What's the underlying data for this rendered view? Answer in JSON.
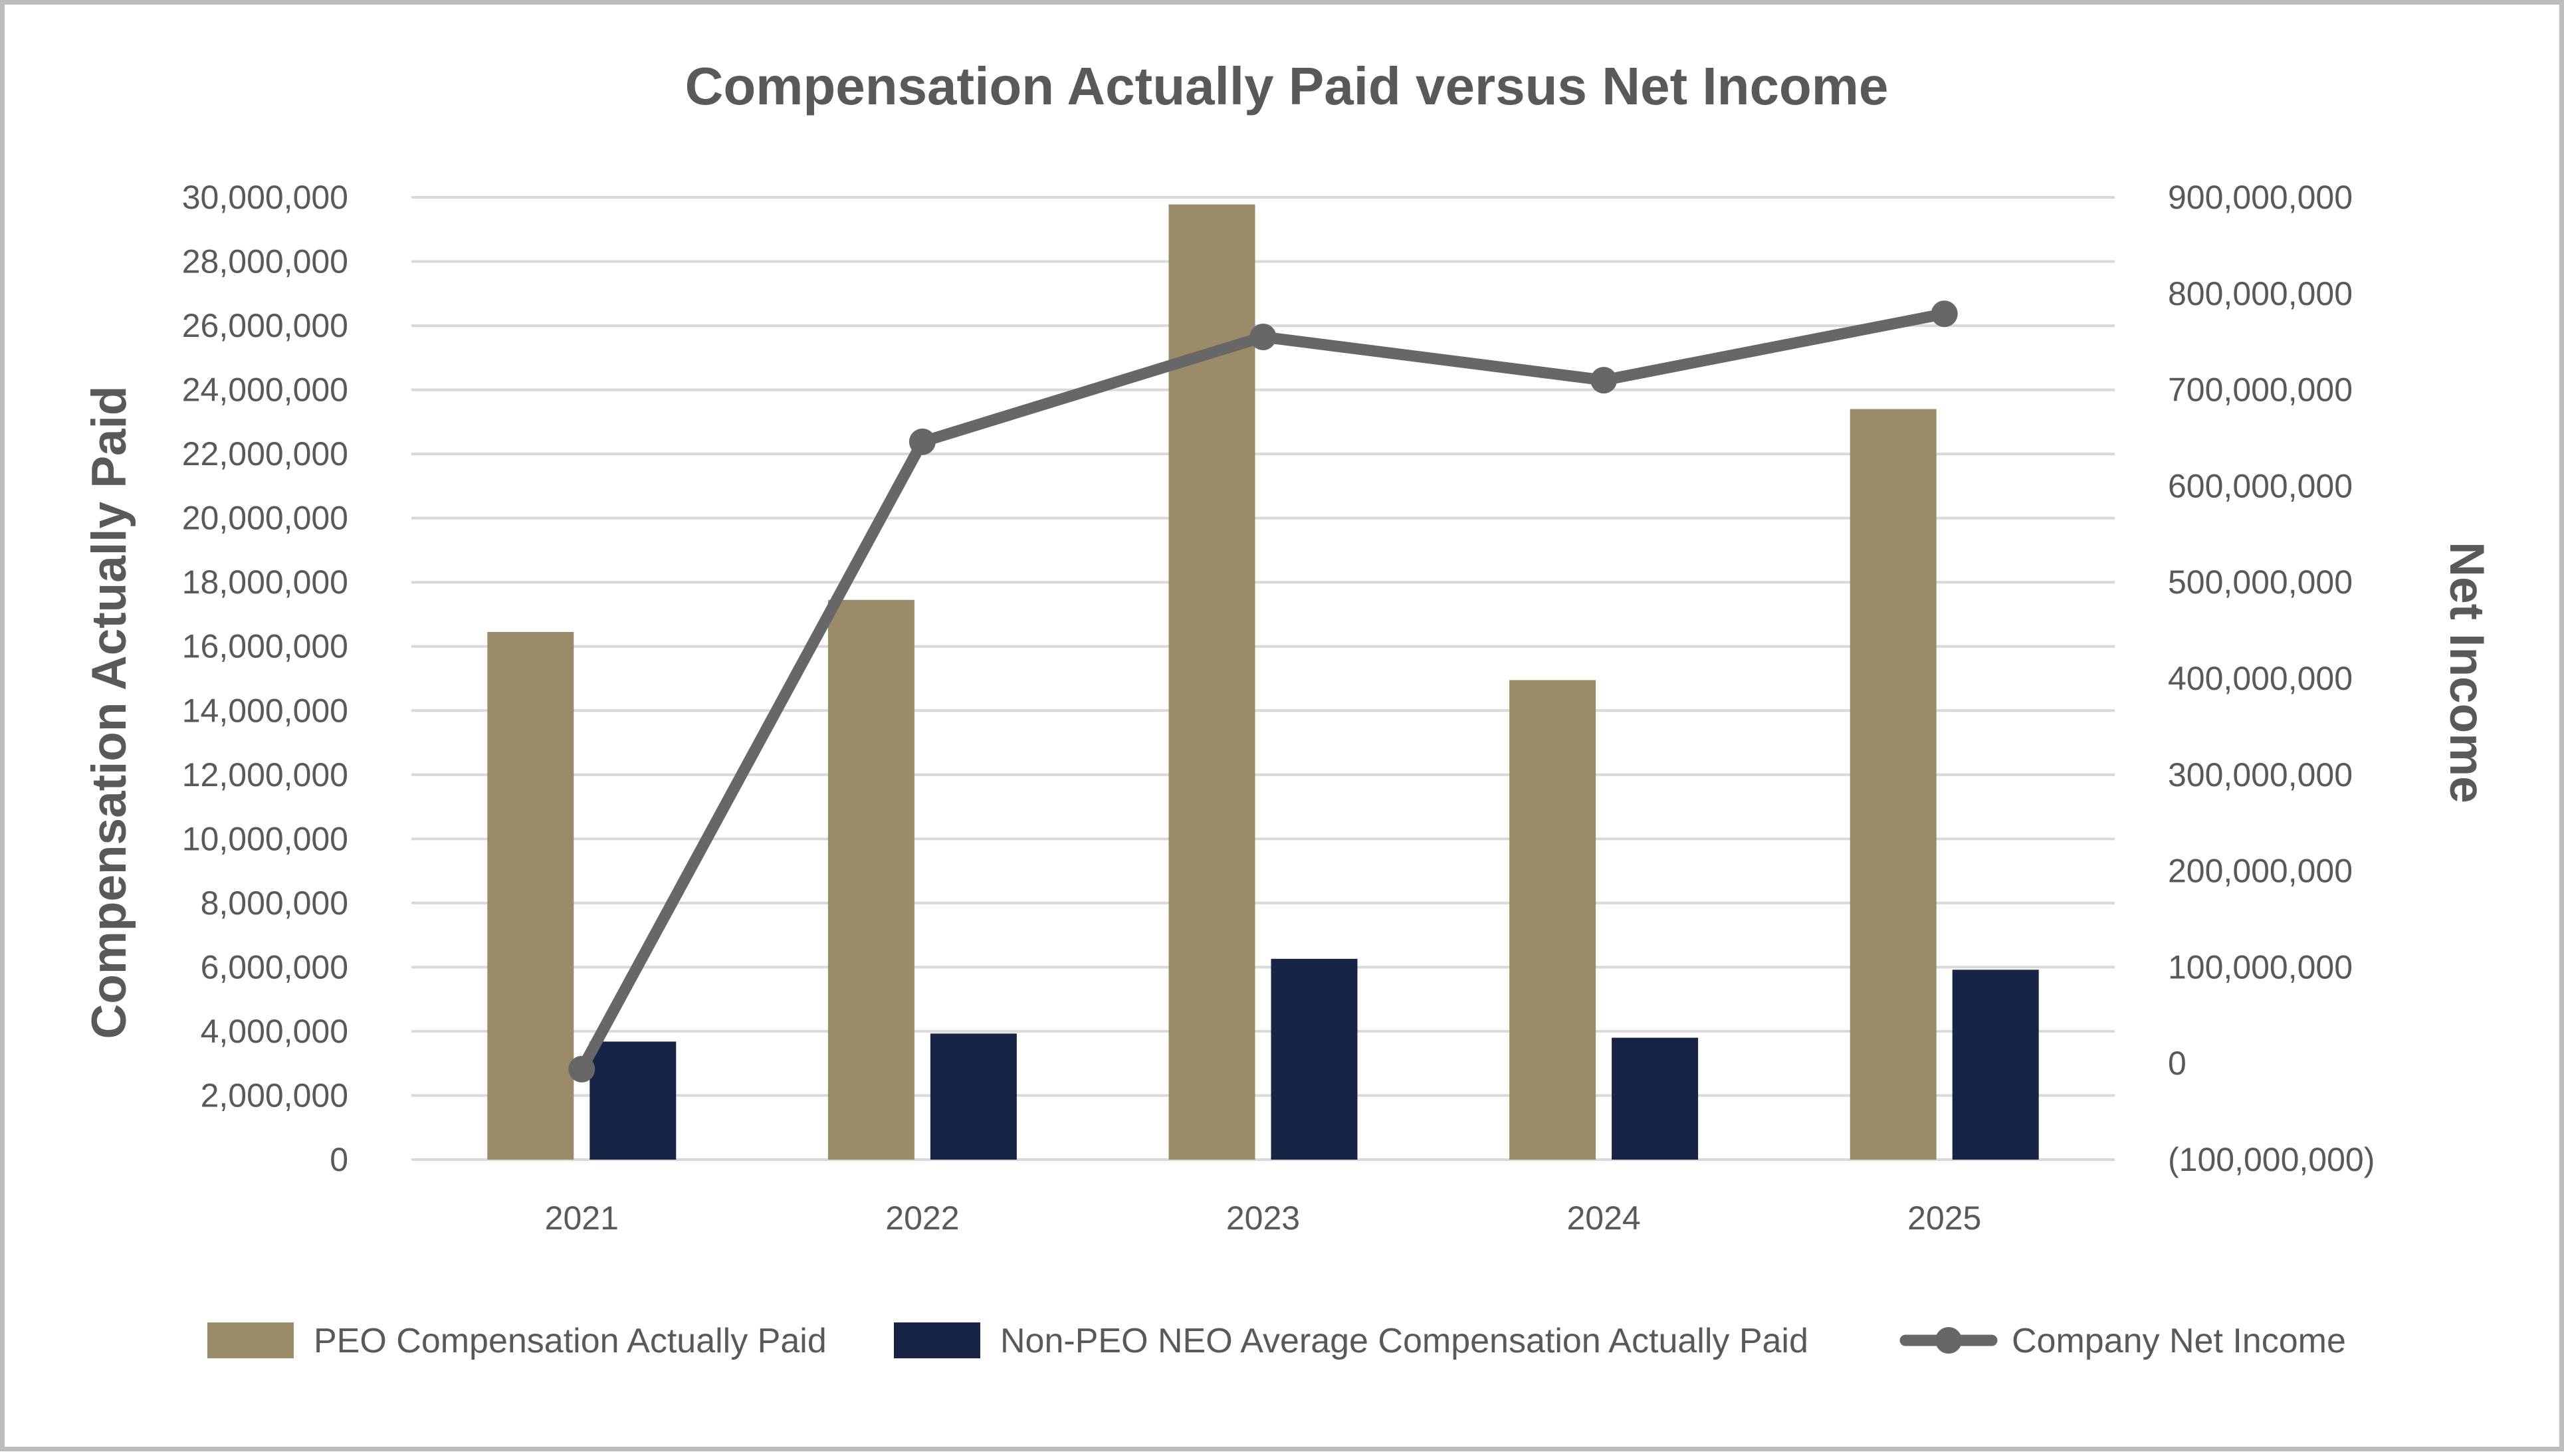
{
  "chart_data": {
    "type": "bar",
    "title": "Compensation Actually Paid versus Net Income",
    "categories": [
      "2021",
      "2022",
      "2023",
      "2024",
      "2025"
    ],
    "series": [
      {
        "name": "PEO Compensation Actually Paid",
        "axis": "left",
        "kind": "bar",
        "color": "#9a8c69",
        "values": [
          16450000,
          17450000,
          29780000,
          14950000,
          23400000
        ]
      },
      {
        "name": "Non-PEO NEO Average Compensation Actually Paid",
        "axis": "left",
        "kind": "bar",
        "color": "#182445",
        "values": [
          3680000,
          3930000,
          6260000,
          3800000,
          5920000
        ]
      },
      {
        "name": "Company Net Income",
        "axis": "right",
        "kind": "line",
        "color": "#676767",
        "values": [
          -6000000,
          646000000,
          755000000,
          710000000,
          779000000
        ]
      }
    ],
    "ylabel": "Compensation Actually Paid",
    "y2label": "Net Income",
    "ylim": [
      0,
      30000000
    ],
    "y2lim": [
      -100000000,
      900000000
    ],
    "yticks": [
      "0",
      "2,000,000",
      "4,000,000",
      "6,000,000",
      "8,000,000",
      "10,000,000",
      "12,000,000",
      "14,000,000",
      "16,000,000",
      "18,000,000",
      "20,000,000",
      "22,000,000",
      "24,000,000",
      "26,000,000",
      "28,000,000",
      "30,000,000"
    ],
    "y2ticks": [
      "(100,000,000)",
      "0",
      "100,000,000",
      "200,000,000",
      "300,000,000",
      "400,000,000",
      "500,000,000",
      "600,000,000",
      "700,000,000",
      "800,000,000",
      "900,000,000"
    ],
    "grid": true,
    "legend": "bottom"
  }
}
